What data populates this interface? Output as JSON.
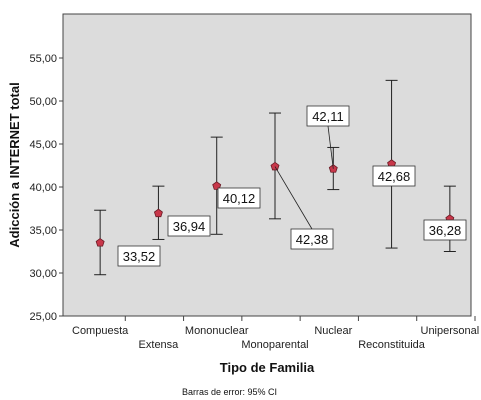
{
  "chart_data": {
    "type": "scatter",
    "xlabel": "Tipo de Familia",
    "ylabel": "Adicción a INTERNET total",
    "footnote": "Barras de error: 95% CI",
    "ylim": [
      25,
      58
    ],
    "yticks": [
      "25,00",
      "30,00",
      "35,00",
      "40,00",
      "45,00",
      "50,00",
      "55,00"
    ],
    "ytick_values": [
      25,
      30,
      35,
      40,
      45,
      50,
      55
    ],
    "grid": false,
    "marker_color": "#c8374a",
    "plot_background": "#dcdcdc",
    "categories": [
      "Compuesta",
      "Extensa",
      "Mononuclear",
      "Monoparental",
      "Nuclear",
      "Reconstituida",
      "Unipersonal"
    ],
    "points": [
      {
        "category": "Compuesta",
        "mean": 33.52,
        "lower": 29.8,
        "upper": 37.3,
        "label": "33,52"
      },
      {
        "category": "Extensa",
        "mean": 36.94,
        "lower": 33.9,
        "upper": 40.1,
        "label": "36,94"
      },
      {
        "category": "Mononuclear",
        "mean": 40.12,
        "lower": 34.5,
        "upper": 45.8,
        "label": "40,12"
      },
      {
        "category": "Monoparental",
        "mean": 42.38,
        "lower": 36.3,
        "upper": 48.6,
        "label": "42,38"
      },
      {
        "category": "Nuclear",
        "mean": 42.11,
        "lower": 39.7,
        "upper": 44.6,
        "label": "42,11"
      },
      {
        "category": "Reconstituida",
        "mean": 42.68,
        "lower": 32.9,
        "upper": 52.4,
        "label": "42,68"
      },
      {
        "category": "Unipersonal",
        "mean": 36.28,
        "lower": 32.5,
        "upper": 40.1,
        "label": "36,28"
      }
    ]
  }
}
